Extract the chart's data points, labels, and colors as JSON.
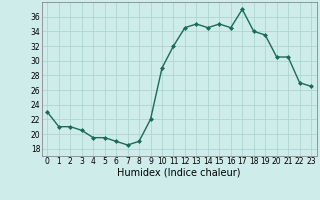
{
  "x": [
    0,
    1,
    2,
    3,
    4,
    5,
    6,
    7,
    8,
    9,
    10,
    11,
    12,
    13,
    14,
    15,
    16,
    17,
    18,
    19,
    20,
    21,
    22,
    23
  ],
  "y": [
    23,
    21,
    21,
    20.5,
    19.5,
    19.5,
    19,
    18.5,
    19,
    22,
    29,
    32,
    34.5,
    35,
    34.5,
    35,
    34.5,
    37,
    34,
    33.5,
    30.5,
    30.5,
    27,
    26.5
  ],
  "xlabel": "Humidex (Indice chaleur)",
  "xlim": [
    -0.5,
    23.5
  ],
  "ylim": [
    17,
    38
  ],
  "yticks": [
    18,
    20,
    22,
    24,
    26,
    28,
    30,
    32,
    34,
    36
  ],
  "xticks": [
    0,
    1,
    2,
    3,
    4,
    5,
    6,
    7,
    8,
    9,
    10,
    11,
    12,
    13,
    14,
    15,
    16,
    17,
    18,
    19,
    20,
    21,
    22,
    23
  ],
  "xtick_labels": [
    "0",
    "1",
    "2",
    "3",
    "4",
    "5",
    "6",
    "7",
    "8",
    "9",
    "10",
    "11",
    "12",
    "13",
    "14",
    "15",
    "16",
    "17",
    "18",
    "19",
    "20",
    "21",
    "22",
    "23"
  ],
  "line_color": "#1a6b5a",
  "marker": "D",
  "marker_size": 2.0,
  "bg_color": "#ceecea",
  "grid_color": "#b0d5d2",
  "axes_color": "#888888",
  "tick_fontsize": 5.5,
  "xlabel_fontsize": 7.0
}
